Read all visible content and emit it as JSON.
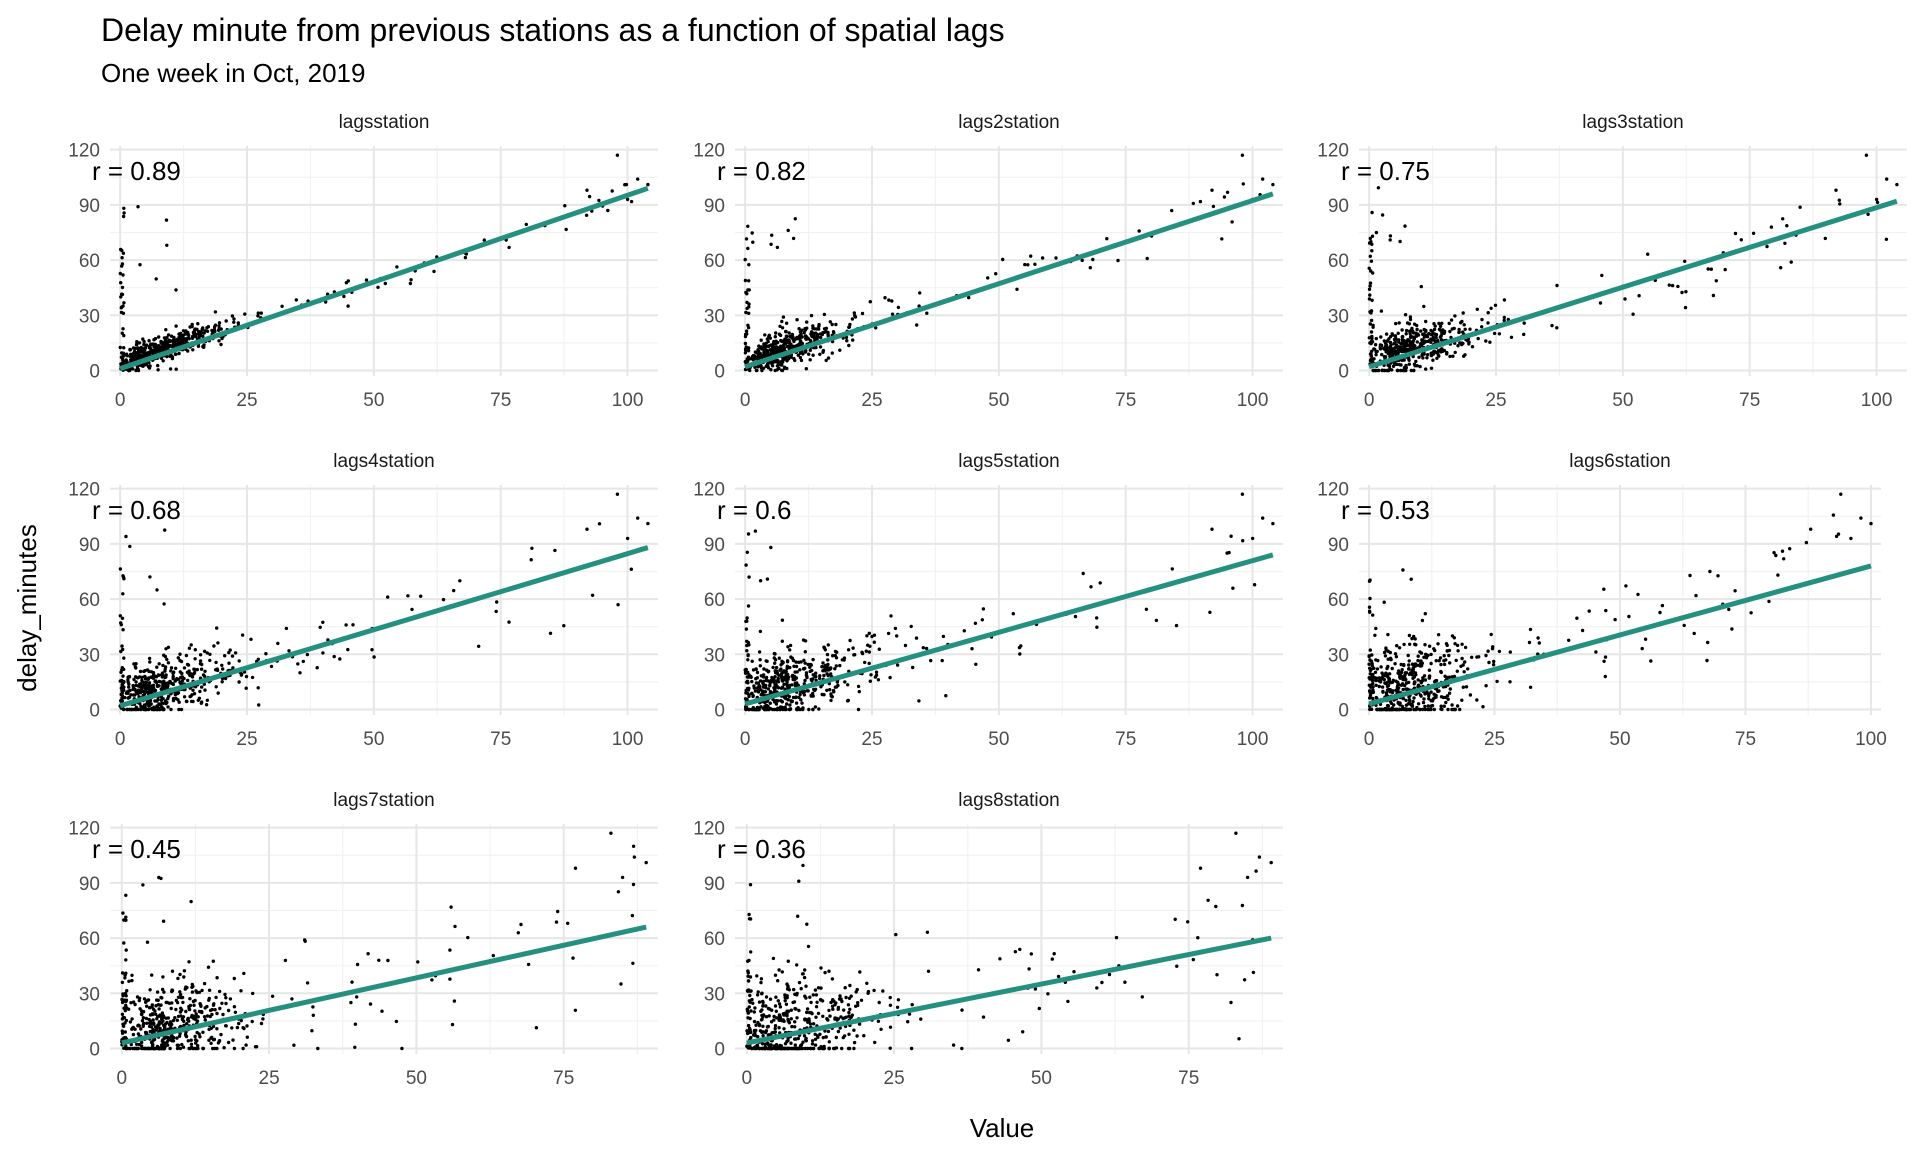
{
  "chart_data": {
    "type": "scatter",
    "title": "Delay minute from previous stations as a function of spatial lags",
    "subtitle": "One week in Oct, 2019",
    "xlabel": "Value",
    "ylabel": "delay_minutes",
    "line_color": "#24907F",
    "point_color": "#000000",
    "panels": [
      {
        "name": "lagsstation",
        "r_label": "r = 0.89",
        "xlim": [
          -2,
          106
        ],
        "ylim": [
          -3,
          122
        ],
        "xticks": [
          0,
          25,
          50,
          75,
          100
        ],
        "yticks": [
          0,
          30,
          60,
          90,
          120
        ],
        "fit": {
          "x": [
            0,
            104
          ],
          "y": [
            1,
            99
          ]
        }
      },
      {
        "name": "lags2station",
        "r_label": "r = 0.82",
        "xlim": [
          -2,
          106
        ],
        "ylim": [
          -3,
          122
        ],
        "xticks": [
          0,
          25,
          50,
          75,
          100
        ],
        "yticks": [
          0,
          30,
          60,
          90,
          120
        ],
        "fit": {
          "x": [
            0,
            104
          ],
          "y": [
            2,
            96
          ]
        }
      },
      {
        "name": "lags3station",
        "r_label": "r = 0.75",
        "xlim": [
          -2,
          106
        ],
        "ylim": [
          -3,
          122
        ],
        "xticks": [
          0,
          25,
          50,
          75,
          100
        ],
        "yticks": [
          0,
          30,
          60,
          90,
          120
        ],
        "fit": {
          "x": [
            0,
            104
          ],
          "y": [
            2,
            92
          ]
        }
      },
      {
        "name": "lags4station",
        "r_label": "r = 0.68",
        "xlim": [
          -2,
          106
        ],
        "ylim": [
          -3,
          122
        ],
        "xticks": [
          0,
          25,
          50,
          75,
          100
        ],
        "yticks": [
          0,
          30,
          60,
          90,
          120
        ],
        "fit": {
          "x": [
            0,
            104
          ],
          "y": [
            2,
            88
          ]
        }
      },
      {
        "name": "lags5station",
        "r_label": "r = 0.6",
        "xlim": [
          -2,
          106
        ],
        "ylim": [
          -3,
          122
        ],
        "xticks": [
          0,
          25,
          50,
          75,
          100
        ],
        "yticks": [
          0,
          30,
          60,
          90,
          120
        ],
        "fit": {
          "x": [
            0,
            104
          ],
          "y": [
            3,
            84
          ]
        }
      },
      {
        "name": "lags6station",
        "r_label": "r = 0.53",
        "xlim": [
          -2,
          102
        ],
        "ylim": [
          -3,
          122
        ],
        "xticks": [
          0,
          25,
          50,
          75,
          100
        ],
        "yticks": [
          0,
          30,
          60,
          90,
          120
        ],
        "fit": {
          "x": [
            0,
            100
          ],
          "y": [
            3,
            78
          ]
        }
      },
      {
        "name": "lags7station",
        "r_label": "r = 0.45",
        "xlim": [
          -2,
          91
        ],
        "ylim": [
          -3,
          122
        ],
        "xticks": [
          0,
          25,
          50,
          75
        ],
        "yticks": [
          0,
          30,
          60,
          90,
          120
        ],
        "fit": {
          "x": [
            0,
            89
          ],
          "y": [
            3,
            66
          ]
        }
      },
      {
        "name": "lags8station",
        "r_label": "r = 0.36",
        "xlim": [
          -2,
          91
        ],
        "ylim": [
          -3,
          122
        ],
        "xticks": [
          0,
          25,
          50,
          75
        ],
        "yticks": [
          0,
          30,
          60,
          90,
          120
        ],
        "fit": {
          "x": [
            0,
            89
          ],
          "y": [
            3,
            60
          ]
        }
      }
    ],
    "points_note": "Thousands of observations per panel, concentrated near the origin and along the fitted line; representative scatter drawn procedurally."
  }
}
